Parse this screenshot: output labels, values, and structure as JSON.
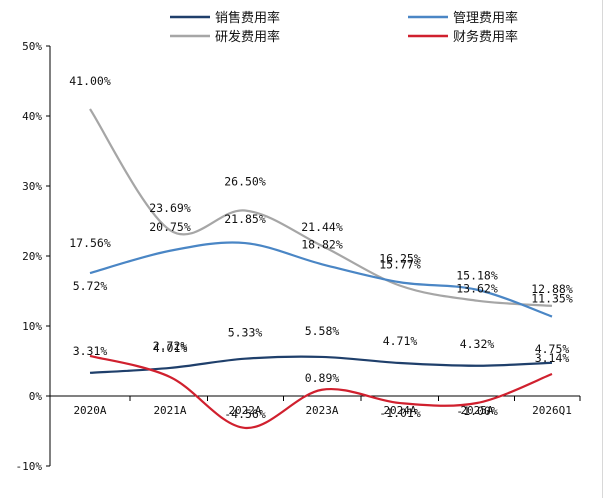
{
  "chart_data": {
    "type": "line",
    "categories": [
      "2020A",
      "2021A",
      "2022A",
      "2023A",
      "2024A",
      "2025A",
      "2026Q1"
    ],
    "ylim": [
      -10,
      50
    ],
    "yticks": [
      -10,
      0,
      10,
      20,
      30,
      40,
      50
    ],
    "ytick_labels": [
      "-10%",
      "0%",
      "10%",
      "20%",
      "30%",
      "40%",
      "50%"
    ],
    "grid": false,
    "legend_position": "top",
    "series": [
      {
        "name": "销售费用率",
        "color": "#1f3f6b",
        "values": [
          3.31,
          4.01,
          5.33,
          5.58,
          4.71,
          4.32,
          4.75
        ],
        "labels": [
          "3.31%",
          "4.01%",
          "5.33%",
          "5.58%",
          "4.71%",
          "4.32%",
          "4.75%"
        ]
      },
      {
        "name": "管理费用率",
        "color": "#4a86c5",
        "values": [
          17.56,
          20.75,
          21.85,
          18.82,
          16.25,
          15.18,
          11.35
        ],
        "labels": [
          "17.56%",
          "20.75%",
          "21.85%",
          "18.82%",
          "16.25%",
          "15.18%",
          "11.35%"
        ]
      },
      {
        "name": "研发费用率",
        "color": "#a6a6a6",
        "values": [
          41.0,
          23.69,
          26.5,
          21.44,
          15.77,
          13.62,
          12.88
        ],
        "labels": [
          "41.00%",
          "23.69%",
          "26.50%",
          "21.44%",
          "15.77%",
          "13.62%",
          "12.88%"
        ]
      },
      {
        "name": "财务费用率",
        "color": "#d0202e",
        "values": [
          5.72,
          2.72,
          -4.56,
          0.89,
          -1.01,
          -1.0,
          3.14
        ],
        "labels": [
          "5.72%",
          "2.72%",
          "-4.56%",
          "0.89%",
          "-1.01%",
          "-1.00%",
          "3.14%"
        ]
      }
    ]
  }
}
